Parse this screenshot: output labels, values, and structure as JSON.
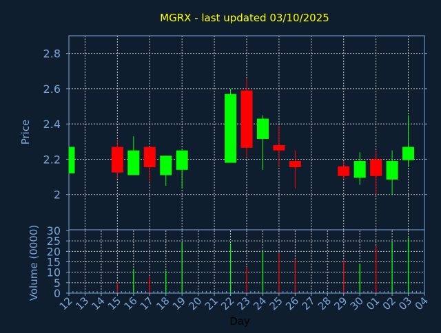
{
  "chart_data": [
    {
      "type": "candlestick",
      "title": "MGRX - last updated 03/10/2025",
      "ylabel": "Price",
      "ylim": [
        1.8,
        2.9
      ],
      "yticks": [
        "2",
        "2.2",
        "2.4",
        "2.6",
        "2.8"
      ],
      "grid": true,
      "categories": [
        "12",
        "13",
        "14",
        "15",
        "16",
        "17",
        "18",
        "19",
        "20",
        "21",
        "22",
        "23",
        "24",
        "25",
        "26",
        "27",
        "28",
        "29",
        "30",
        "01",
        "02",
        "03",
        "04"
      ],
      "candles": [
        {
          "day": "12",
          "open": 2.12,
          "high": 2.27,
          "low": 2.12,
          "close": 2.27
        },
        {
          "day": "15",
          "open": 2.27,
          "high": 2.31,
          "low": 2.09,
          "close": 2.125
        },
        {
          "day": "16",
          "open": 2.11,
          "high": 2.33,
          "low": 2.11,
          "close": 2.25
        },
        {
          "day": "17",
          "open": 2.27,
          "high": 2.27,
          "low": 2.07,
          "close": 2.155
        },
        {
          "day": "18",
          "open": 2.11,
          "high": 2.22,
          "low": 2.05,
          "close": 2.22
        },
        {
          "day": "19",
          "open": 2.14,
          "high": 2.25,
          "low": 2.035,
          "close": 2.25
        },
        {
          "day": "22",
          "open": 2.18,
          "high": 2.6,
          "low": 2.18,
          "close": 2.57
        },
        {
          "day": "23",
          "open": 2.59,
          "high": 2.66,
          "low": 2.21,
          "close": 2.265
        },
        {
          "day": "24",
          "open": 2.315,
          "high": 2.45,
          "low": 2.14,
          "close": 2.43
        },
        {
          "day": "25",
          "open": 2.28,
          "high": 2.39,
          "low": 2.155,
          "close": 2.25
        },
        {
          "day": "26",
          "open": 2.19,
          "high": 2.25,
          "low": 2.035,
          "close": 2.155
        },
        {
          "day": "29",
          "open": 2.16,
          "high": 2.19,
          "low": 2.085,
          "close": 2.105
        },
        {
          "day": "30",
          "open": 2.095,
          "high": 2.24,
          "low": 2.055,
          "close": 2.19
        },
        {
          "day": "01",
          "open": 2.2,
          "high": 2.25,
          "low": 2.0,
          "close": 2.105
        },
        {
          "day": "02",
          "open": 2.085,
          "high": 2.25,
          "low": 2.0,
          "close": 2.19
        },
        {
          "day": "03",
          "open": 2.195,
          "high": 2.45,
          "low": 2.155,
          "close": 2.27
        }
      ]
    },
    {
      "type": "bar",
      "ylabel": "Volume (0000)",
      "xlabel": "Day",
      "ylim": [
        0,
        30
      ],
      "yticks": [
        "0",
        "5",
        "10",
        "15",
        "20",
        "25",
        "30"
      ],
      "grid": true,
      "volumes": [
        {
          "day": "15",
          "value": 5,
          "direction": "down"
        },
        {
          "day": "16",
          "value": 11.5,
          "direction": "up"
        },
        {
          "day": "17",
          "value": 8,
          "direction": "down"
        },
        {
          "day": "18",
          "value": 10.6,
          "direction": "up"
        },
        {
          "day": "19",
          "value": 24.2,
          "direction": "up"
        },
        {
          "day": "22",
          "value": 23.8,
          "direction": "up"
        },
        {
          "day": "23",
          "value": 12.5,
          "direction": "down"
        },
        {
          "day": "24",
          "value": 20,
          "direction": "up"
        },
        {
          "day": "25",
          "value": 19.1,
          "direction": "down"
        },
        {
          "day": "26",
          "value": 16.4,
          "direction": "down"
        },
        {
          "day": "29",
          "value": 15.8,
          "direction": "down"
        },
        {
          "day": "30",
          "value": 13.9,
          "direction": "up"
        },
        {
          "day": "01",
          "value": 22.6,
          "direction": "down"
        },
        {
          "day": "02",
          "value": 24.2,
          "direction": "up"
        },
        {
          "day": "03",
          "value": 26.5,
          "direction": "up"
        }
      ]
    }
  ],
  "colors": {
    "background": "#0f1e2f",
    "axis": "#7ea6d8",
    "grid": "#c8c8c8",
    "title": "#ffff00",
    "up": "#00ff00",
    "down": "#ff0000",
    "xlabel": "#000000"
  }
}
